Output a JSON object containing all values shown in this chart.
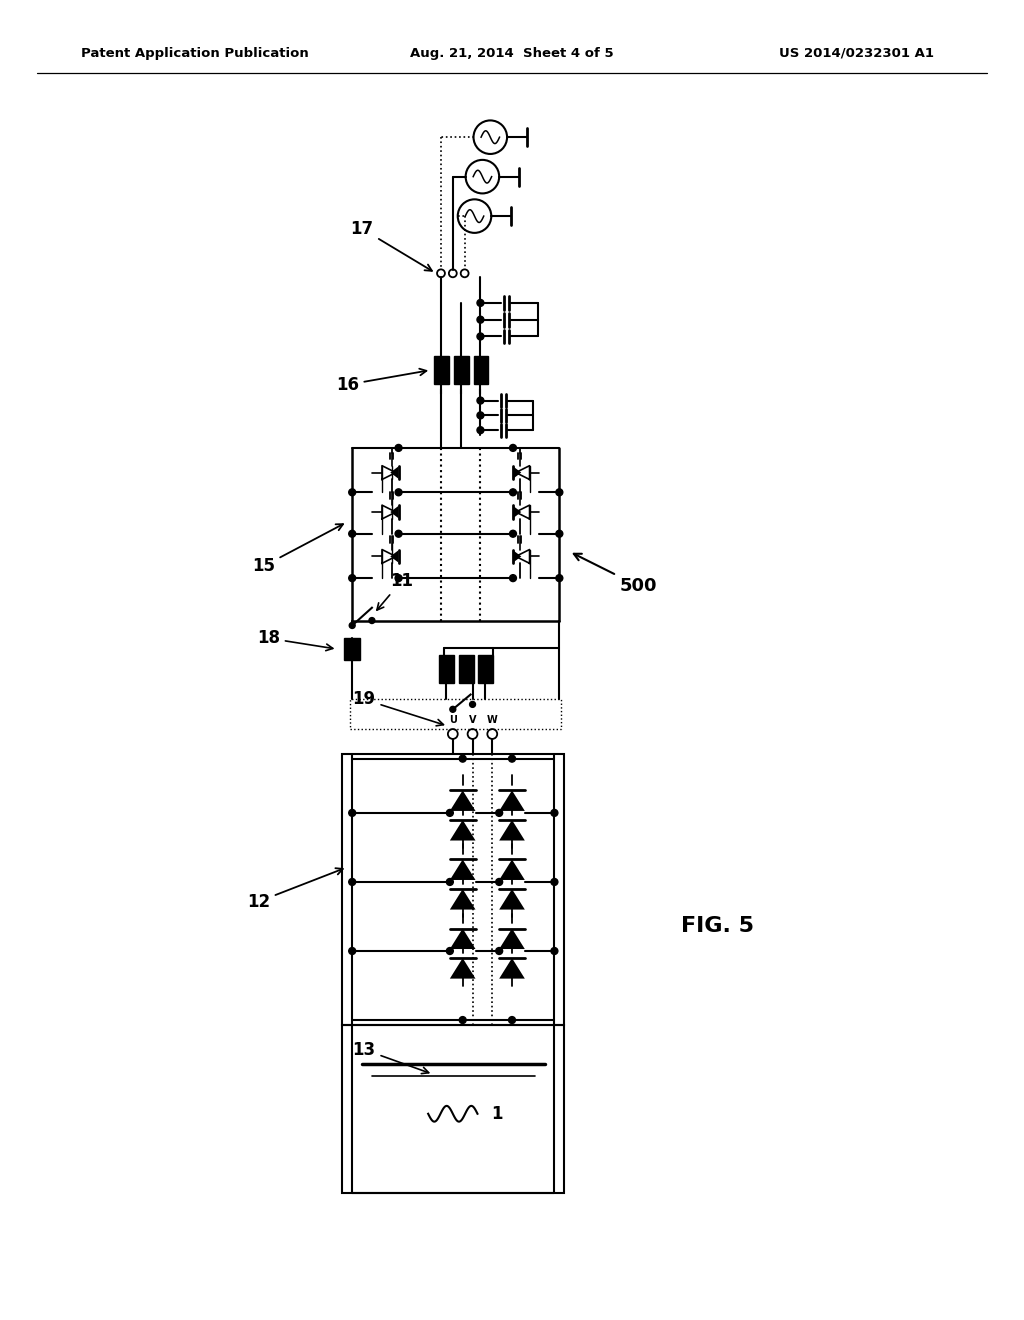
{
  "title_left": "Patent Application Publication",
  "title_center": "Aug. 21, 2014  Sheet 4 of 5",
  "title_right": "US 2014/0232301 A1",
  "fig_label": "FIG. 5",
  "bg_color": "#ffffff"
}
